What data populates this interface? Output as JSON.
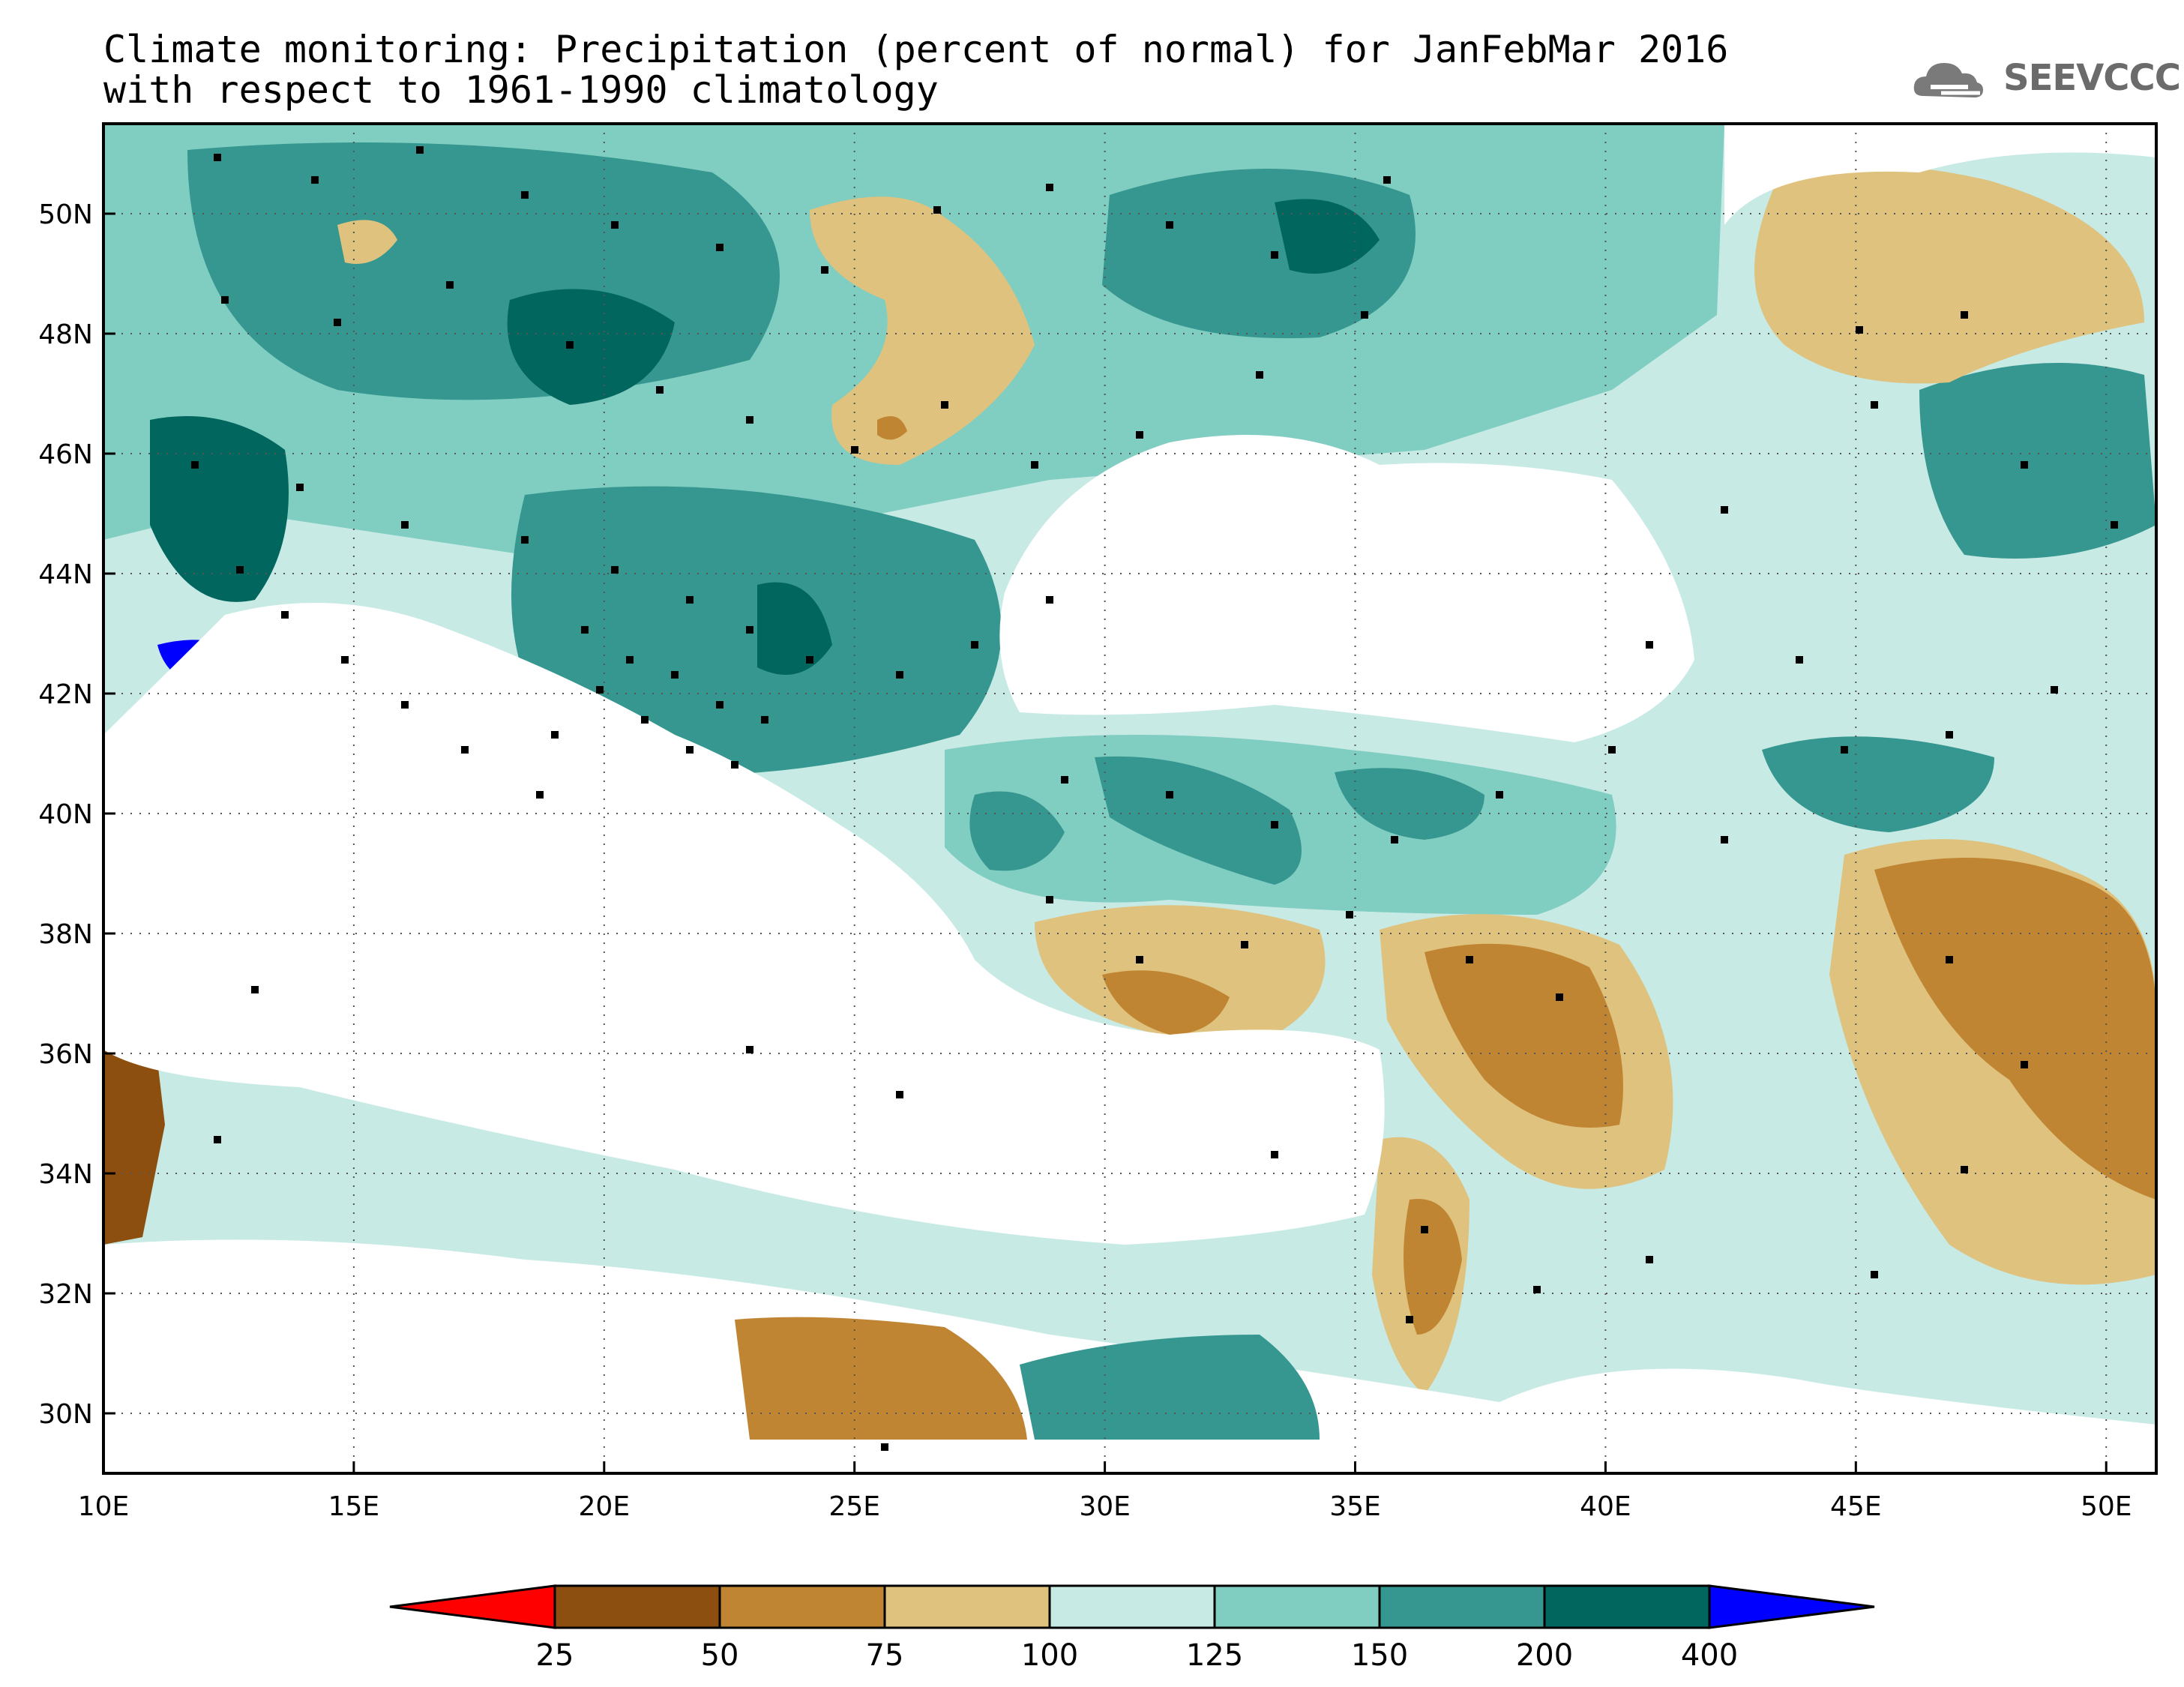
{
  "title": {
    "line1": "Climate monitoring: Precipitation (percent of normal) for JanFebMar 2016",
    "line2": "with respect to 1961-1990 climatology"
  },
  "logo": {
    "text": "SEEVCCC",
    "icon": "cloud-icon"
  },
  "map": {
    "lon_range": [
      10,
      51
    ],
    "lat_range": [
      29,
      51.5
    ],
    "lon_ticks": [
      "10E",
      "15E",
      "20E",
      "25E",
      "30E",
      "35E",
      "40E",
      "45E",
      "50E"
    ],
    "lat_ticks": [
      "30N",
      "32N",
      "34N",
      "36N",
      "38N",
      "40N",
      "42N",
      "44N",
      "46N",
      "48N",
      "50N"
    ],
    "grid": "dotted"
  },
  "colorbar": {
    "labels": [
      "25",
      "50",
      "75",
      "100",
      "125",
      "150",
      "200",
      "400"
    ],
    "colors": [
      "#ff0000",
      "#8c4f0f",
      "#bf8533",
      "#dfc27d",
      "#c7eae5",
      "#80cdc1",
      "#35978f",
      "#01665e",
      "#0000ff"
    ]
  }
}
